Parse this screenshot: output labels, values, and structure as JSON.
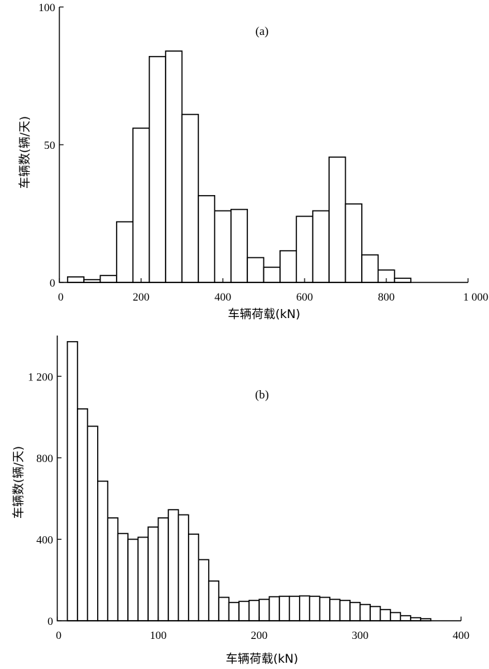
{
  "chart_data": [
    {
      "type": "bar",
      "panel_label": "(a)",
      "xlabel": "车辆荷载(kN)",
      "ylabel": "车辆数(辆/天)",
      "xlim": [
        0,
        1000
      ],
      "ylim": [
        0,
        100
      ],
      "xticks": [
        0,
        200,
        400,
        600,
        800,
        1000
      ],
      "xtick_labels": [
        "0",
        "200",
        "400",
        "600",
        "800",
        "1 000"
      ],
      "yticks": [
        0,
        50,
        100
      ],
      "ytick_labels": [
        "0",
        "50",
        "100"
      ],
      "grid": false,
      "bin_width": 40,
      "bins_start": [
        20,
        60,
        100,
        140,
        180,
        220,
        260,
        300,
        340,
        380,
        420,
        460,
        500,
        540,
        580,
        620,
        660,
        700,
        740,
        780,
        820,
        860
      ],
      "values": [
        2,
        1,
        2.5,
        22,
        56,
        82,
        84,
        61,
        31.5,
        26,
        26.5,
        9,
        5.5,
        11.5,
        24,
        26,
        45.5,
        28.5,
        10,
        4.5,
        1.5,
        0
      ]
    },
    {
      "type": "bar",
      "panel_label": "(b)",
      "xlabel": "车辆荷载(kN)",
      "ylabel": "车辆数(辆/天)",
      "xlim": [
        0,
        400
      ],
      "ylim": [
        0,
        1400
      ],
      "xticks": [
        0,
        100,
        200,
        300,
        400
      ],
      "xtick_labels": [
        "0",
        "100",
        "200",
        "300",
        "400"
      ],
      "yticks": [
        0,
        400,
        800,
        1200
      ],
      "ytick_labels": [
        "0",
        "400",
        "800",
        "1 200"
      ],
      "grid": false,
      "bin_width": 10,
      "bins_start": [
        10,
        20,
        30,
        40,
        50,
        60,
        70,
        80,
        90,
        100,
        110,
        120,
        130,
        140,
        150,
        160,
        170,
        180,
        190,
        200,
        210,
        220,
        230,
        240,
        250,
        260,
        270,
        280,
        290,
        300,
        310,
        320,
        330,
        340,
        350,
        360
      ],
      "values": [
        1370,
        1040,
        955,
        685,
        505,
        428,
        400,
        410,
        460,
        505,
        545,
        520,
        425,
        300,
        195,
        115,
        90,
        95,
        100,
        105,
        118,
        120,
        120,
        122,
        120,
        115,
        105,
        100,
        90,
        80,
        70,
        55,
        40,
        25,
        15,
        10
      ]
    }
  ]
}
